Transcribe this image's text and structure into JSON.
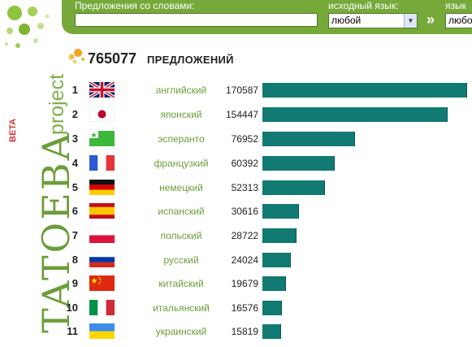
{
  "brand": {
    "beta": "BETA",
    "name": "TATOEBA",
    "suffix": "project"
  },
  "search": {
    "label": "Предложения со словами:",
    "value": "",
    "src_label": "исходный язык:",
    "src_value": "любой",
    "swap": "»",
    "dst_label": "язык",
    "dst_value": "любо"
  },
  "header": {
    "total": "765077",
    "label": "ПРЕДЛОЖЕНИЙ"
  },
  "max_count": 170587,
  "languages": [
    {
      "rank": "1",
      "name": "английский",
      "count": "170587",
      "value": 170587,
      "flag": "uk"
    },
    {
      "rank": "2",
      "name": "японский",
      "count": "154447",
      "value": 154447,
      "flag": "jp"
    },
    {
      "rank": "3",
      "name": "эсперанто",
      "count": "76952",
      "value": 76952,
      "flag": "eo"
    },
    {
      "rank": "4",
      "name": "французкий",
      "count": "60392",
      "value": 60392,
      "flag": "fr"
    },
    {
      "rank": "5",
      "name": "немецкий",
      "count": "52313",
      "value": 52313,
      "flag": "de"
    },
    {
      "rank": "6",
      "name": "испанский",
      "count": "30616",
      "value": 30616,
      "flag": "es"
    },
    {
      "rank": "7",
      "name": "польский",
      "count": "28722",
      "value": 28722,
      "flag": "pl"
    },
    {
      "rank": "8",
      "name": "русский",
      "count": "24024",
      "value": 24024,
      "flag": "ru"
    },
    {
      "rank": "9",
      "name": "китайский",
      "count": "19679",
      "value": 19679,
      "flag": "cn"
    },
    {
      "rank": "10",
      "name": "итальянский",
      "count": "16576",
      "value": 16576,
      "flag": "it"
    },
    {
      "rank": "11",
      "name": "украинский",
      "count": "15819",
      "value": 15819,
      "flag": "ua"
    }
  ],
  "colors": {
    "accent_green": "#76a93a",
    "bar": "#117a72",
    "lang_text": "#6b9e3a"
  }
}
